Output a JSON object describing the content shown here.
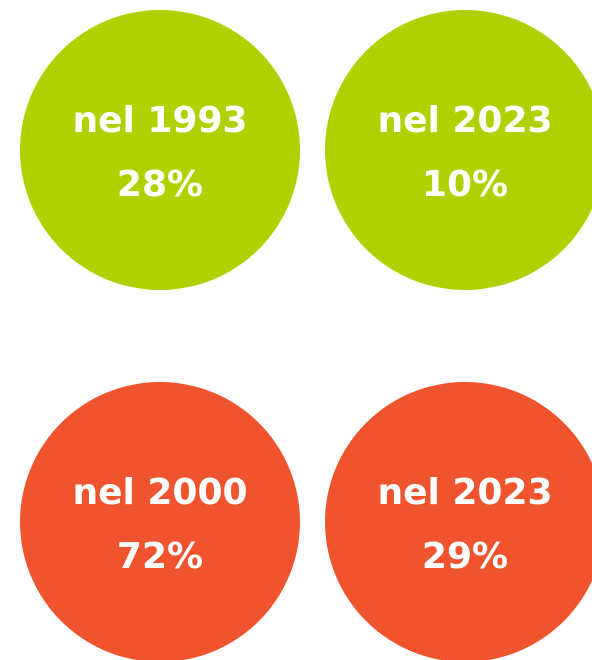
{
  "circles": [
    {
      "label": "nel 1993",
      "value": "28%",
      "color": "#b0d100"
    },
    {
      "label": "nel 2023",
      "value": "10%",
      "color": "#b0d100"
    },
    {
      "label": "nel 2000",
      "value": "72%",
      "color": "#f0542e"
    },
    {
      "label": "nel 2023",
      "value": "29%",
      "color": "#f0542e"
    }
  ]
}
